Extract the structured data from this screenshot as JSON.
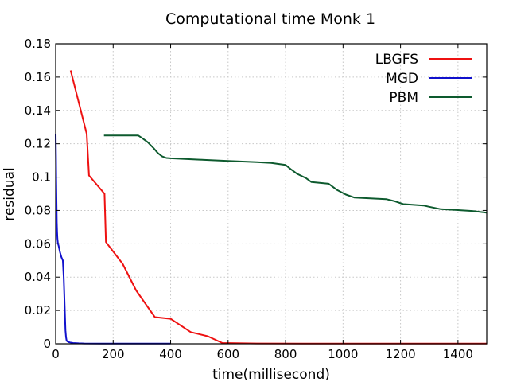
{
  "chart_data": {
    "type": "line",
    "title": "Computational time Monk 1",
    "xlabel": "time(millisecond)",
    "ylabel": "residual",
    "xlim": [
      0,
      1500
    ],
    "ylim": [
      0,
      0.18
    ],
    "xticks": [
      0,
      200,
      400,
      600,
      800,
      1000,
      1200,
      1400
    ],
    "xtick_labels": [
      "0",
      "200",
      "400",
      "600",
      "800",
      "1000",
      "1200",
      "1400"
    ],
    "yticks": [
      0,
      0.02,
      0.04,
      0.06,
      0.08,
      0.1,
      0.12,
      0.14,
      0.16,
      0.18
    ],
    "ytick_labels": [
      "0",
      "0.02",
      "0.04",
      "0.06",
      "0.08",
      "0.1",
      "0.12",
      "0.14",
      "0.16",
      "0.18"
    ],
    "grid": true,
    "legend_position": "top-right",
    "series": [
      {
        "name": "LBGFS",
        "color": "#ee1111",
        "x": [
          52,
          108,
          116,
          170,
          175,
          233,
          280,
          345,
          400,
          470,
          530,
          580,
          700,
          900,
          1200,
          1500
        ],
        "y": [
          0.164,
          0.126,
          0.101,
          0.09,
          0.061,
          0.048,
          0.032,
          0.016,
          0.015,
          0.007,
          0.0045,
          0.0005,
          0.0002,
          0.0001,
          0.0001,
          0.0001
        ]
      },
      {
        "name": "MGD",
        "color": "#1111cc",
        "x": [
          0,
          1,
          2,
          3,
          4,
          5,
          6,
          8,
          10,
          15,
          20,
          25,
          28,
          30,
          32,
          34,
          36,
          38,
          40,
          45,
          50,
          60,
          80,
          100,
          200,
          300,
          400
        ],
        "y": [
          0.126,
          0.112,
          0.097,
          0.083,
          0.073,
          0.067,
          0.063,
          0.06,
          0.059,
          0.055,
          0.052,
          0.05,
          0.04,
          0.03,
          0.018,
          0.008,
          0.004,
          0.002,
          0.0015,
          0.001,
          0.0008,
          0.0005,
          0.0003,
          0.0002,
          0.0001,
          0.0001,
          0.0001
        ]
      },
      {
        "name": "PBM",
        "color": "#0d5a2e",
        "x": [
          168,
          200,
          250,
          287,
          300,
          320,
          340,
          355,
          370,
          385,
          400,
          500,
          600,
          700,
          750,
          800,
          820,
          840,
          870,
          890,
          950,
          980,
          1010,
          1040,
          1150,
          1180,
          1210,
          1280,
          1300,
          1340,
          1400,
          1450,
          1500
        ],
        "y": [
          0.125,
          0.125,
          0.125,
          0.125,
          0.1235,
          0.121,
          0.1175,
          0.1145,
          0.1125,
          0.1115,
          0.1113,
          0.1105,
          0.1097,
          0.109,
          0.1085,
          0.1073,
          0.1045,
          0.102,
          0.0995,
          0.097,
          0.096,
          0.0922,
          0.0895,
          0.0877,
          0.0868,
          0.0855,
          0.0838,
          0.083,
          0.0822,
          0.0808,
          0.0802,
          0.0797,
          0.0787
        ]
      }
    ]
  }
}
